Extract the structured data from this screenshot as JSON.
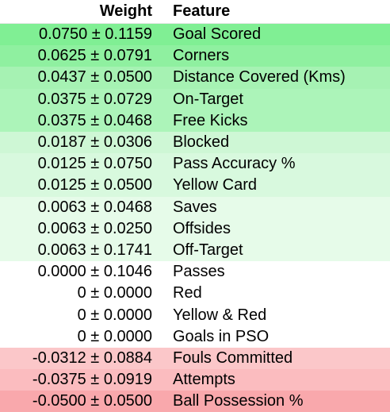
{
  "headers": {
    "weight": "Weight",
    "feature": "Feature"
  },
  "rows": [
    {
      "weight": "0.0750 ± 0.1159",
      "feature": "Goal Scored",
      "bg": "#80ef94"
    },
    {
      "weight": "0.0625 ± 0.0791",
      "feature": "Corners",
      "bg": "#8ff0a0"
    },
    {
      "weight": "0.0437 ± 0.0500",
      "feature": "Distance Covered (Kms)",
      "bg": "#a6f2b3"
    },
    {
      "weight": "0.0375 ± 0.0729",
      "feature": "On-Target",
      "bg": "#acf4b9"
    },
    {
      "weight": "0.0375 ± 0.0468",
      "feature": "Free Kicks",
      "bg": "#acf4b9"
    },
    {
      "weight": "0.0187 ± 0.0306",
      "feature": "Blocked",
      "bg": "#cef7d5"
    },
    {
      "weight": "0.0125 ± 0.0750",
      "feature": "Pass Accuracy %",
      "bg": "#d8f9de"
    },
    {
      "weight": "0.0125 ± 0.0500",
      "feature": "Yellow Card",
      "bg": "#d8f9de"
    },
    {
      "weight": "0.0063 ± 0.0468",
      "feature": "Saves",
      "bg": "#e6fbe9"
    },
    {
      "weight": "0.0063 ± 0.0250",
      "feature": "Offsides",
      "bg": "#e6fbe9"
    },
    {
      "weight": "0.0063 ± 0.1741",
      "feature": "Off-Target",
      "bg": "#e6fbe9"
    },
    {
      "weight": "0.0000 ± 0.1046",
      "feature": "Passes",
      "bg": "#ffffff"
    },
    {
      "weight": "0 ± 0.0000",
      "feature": "Red",
      "bg": "#ffffff"
    },
    {
      "weight": "0 ± 0.0000",
      "feature": "Yellow & Red",
      "bg": "#ffffff"
    },
    {
      "weight": "0 ± 0.0000",
      "feature": "Goals in PSO",
      "bg": "#ffffff"
    },
    {
      "weight": "-0.0312 ± 0.0884",
      "feature": "Fouls Committed",
      "bg": "#fbc7c9"
    },
    {
      "weight": "-0.0375 ± 0.0919",
      "feature": "Attempts",
      "bg": "#fbbcbf"
    },
    {
      "weight": "-0.0500 ± 0.0500",
      "feature": "Ball Possession %",
      "bg": "#f9a8ac"
    }
  ]
}
